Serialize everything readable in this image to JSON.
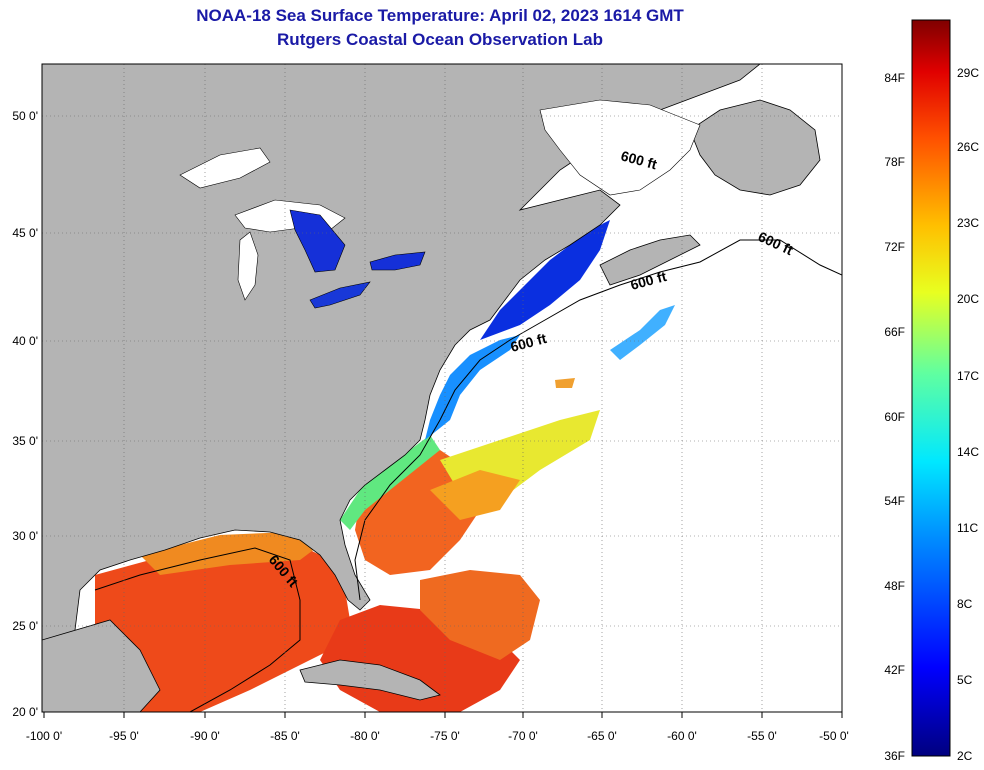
{
  "header": {
    "title": "NOAA-18 Sea Surface Temperature:  April 02, 2023 1614 GMT",
    "subtitle": "Rutgers Coastal Ocean Observation Lab"
  },
  "map": {
    "lon_ticks": [
      "-100 0'",
      "-95 0'",
      "-90 0'",
      "-85 0'",
      "-80 0'",
      "-75 0'",
      "-70 0'",
      "-65 0'",
      "-60 0'",
      "-55 0'",
      "-50 0'"
    ],
    "lat_ticks": [
      "50 0'",
      "45 0'",
      "40 0'",
      "35 0'",
      "30 0'",
      "25 0'",
      "20 0'"
    ],
    "contour_labels": [
      "600 ft",
      "600 ft",
      "600 ft",
      "600 ft",
      "600 ft"
    ],
    "colors": {
      "land": "#b4b4b4",
      "cloud": "#ffffff",
      "border": "#000000"
    }
  },
  "colorbar": {
    "fahrenheit": [
      "84F",
      "78F",
      "72F",
      "66F",
      "60F",
      "54F",
      "48F",
      "42F",
      "36F"
    ],
    "celsius": [
      "29C",
      "26C",
      "23C",
      "20C",
      "17C",
      "14C",
      "11C",
      "8C",
      "5C",
      "2C"
    ]
  }
}
